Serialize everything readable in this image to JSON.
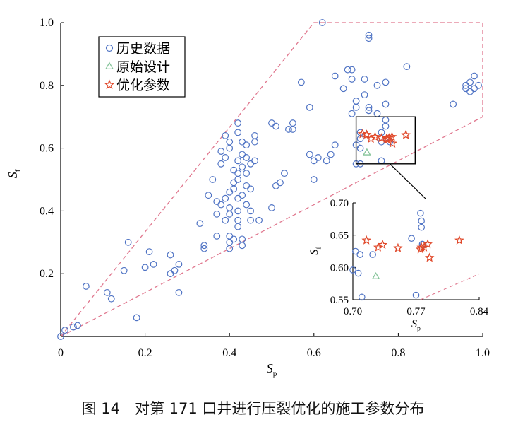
{
  "caption": "图 14　对第 171 口井进行压裂优化的施工参数分布",
  "colors": {
    "history": "#4f73c4",
    "original": "#86c49a",
    "optimized": "#e0482a",
    "boundary": "#e0778e"
  },
  "chart_data": [
    {
      "type": "scatter",
      "xlabel": "Sp",
      "ylabel": "Sf",
      "xlim": [
        0,
        1.0
      ],
      "ylim": [
        0,
        1.0
      ],
      "xticks": [
        "0",
        "0.2",
        "0.4",
        "0.6",
        "0.8",
        "1.0"
      ],
      "yticks": [
        "0.2",
        "0.4",
        "0.6",
        "0.8",
        "1.0"
      ],
      "legend": [
        "历史数据",
        "原始设计",
        "优化参数"
      ],
      "legend_position": "top-left",
      "boundary_upper": [
        [
          0,
          0
        ],
        [
          0.6,
          1.0
        ],
        [
          1.0,
          1.0
        ],
        [
          1.0,
          0.7
        ]
      ],
      "boundary_lower": [
        [
          0,
          0
        ],
        [
          1.0,
          0.7
        ]
      ],
      "series": [
        {
          "name": "历史数据",
          "marker": "circle",
          "points": [
            [
              0.0,
              0.0
            ],
            [
              0.01,
              0.02
            ],
            [
              0.03,
              0.03
            ],
            [
              0.04,
              0.035
            ],
            [
              0.06,
              0.16
            ],
            [
              0.11,
              0.14
            ],
            [
              0.12,
              0.12
            ],
            [
              0.15,
              0.21
            ],
            [
              0.16,
              0.3
            ],
            [
              0.18,
              0.06
            ],
            [
              0.2,
              0.22
            ],
            [
              0.21,
              0.27
            ],
            [
              0.22,
              0.23
            ],
            [
              0.26,
              0.2
            ],
            [
              0.26,
              0.26
            ],
            [
              0.27,
              0.21
            ],
            [
              0.28,
              0.23
            ],
            [
              0.28,
              0.14
            ],
            [
              0.33,
              0.36
            ],
            [
              0.34,
              0.28
            ],
            [
              0.34,
              0.29
            ],
            [
              0.35,
              0.45
            ],
            [
              0.36,
              0.5
            ],
            [
              0.37,
              0.43
            ],
            [
              0.37,
              0.32
            ],
            [
              0.37,
              0.39
            ],
            [
              0.38,
              0.42
            ],
            [
              0.38,
              0.55
            ],
            [
              0.38,
              0.59
            ],
            [
              0.39,
              0.64
            ],
            [
              0.39,
              0.57
            ],
            [
              0.39,
              0.44
            ],
            [
              0.39,
              0.37
            ],
            [
              0.4,
              0.28
            ],
            [
              0.4,
              0.3
            ],
            [
              0.4,
              0.62
            ],
            [
              0.4,
              0.6
            ],
            [
              0.4,
              0.46
            ],
            [
              0.4,
              0.41
            ],
            [
              0.4,
              0.39
            ],
            [
              0.4,
              0.32
            ],
            [
              0.41,
              0.53
            ],
            [
              0.41,
              0.49
            ],
            [
              0.41,
              0.47
            ],
            [
              0.41,
              0.31
            ],
            [
              0.42,
              0.65
            ],
            [
              0.42,
              0.68
            ],
            [
              0.42,
              0.56
            ],
            [
              0.42,
              0.52
            ],
            [
              0.42,
              0.5
            ],
            [
              0.42,
              0.44
            ],
            [
              0.42,
              0.4
            ],
            [
              0.42,
              0.37
            ],
            [
              0.42,
              0.35
            ],
            [
              0.43,
              0.62
            ],
            [
              0.43,
              0.58
            ],
            [
              0.43,
              0.54
            ],
            [
              0.43,
              0.45
            ],
            [
              0.43,
              0.31
            ],
            [
              0.43,
              0.29
            ],
            [
              0.44,
              0.61
            ],
            [
              0.44,
              0.57
            ],
            [
              0.44,
              0.52
            ],
            [
              0.44,
              0.48
            ],
            [
              0.44,
              0.42
            ],
            [
              0.45,
              0.55
            ],
            [
              0.45,
              0.47
            ],
            [
              0.45,
              0.4
            ],
            [
              0.45,
              0.37
            ],
            [
              0.46,
              0.64
            ],
            [
              0.46,
              0.62
            ],
            [
              0.46,
              0.56
            ],
            [
              0.47,
              0.37
            ],
            [
              0.5,
              0.68
            ],
            [
              0.5,
              0.41
            ],
            [
              0.51,
              0.67
            ],
            [
              0.51,
              0.48
            ],
            [
              0.52,
              0.49
            ],
            [
              0.53,
              0.52
            ],
            [
              0.54,
              0.66
            ],
            [
              0.55,
              0.68
            ],
            [
              0.55,
              0.66
            ],
            [
              0.57,
              0.81
            ],
            [
              0.59,
              0.73
            ],
            [
              0.59,
              0.58
            ],
            [
              0.6,
              0.56
            ],
            [
              0.6,
              0.5
            ],
            [
              0.61,
              0.57
            ],
            [
              0.62,
              1.0
            ],
            [
              0.63,
              0.56
            ],
            [
              0.64,
              0.58
            ],
            [
              0.65,
              0.83
            ],
            [
              0.65,
              0.61
            ],
            [
              0.67,
              0.79
            ],
            [
              0.68,
              0.85
            ],
            [
              0.69,
              0.85
            ],
            [
              0.69,
              0.82
            ],
            [
              0.69,
              0.71
            ],
            [
              0.7,
              0.75
            ],
            [
              0.7,
              0.73
            ],
            [
              0.7,
              0.61
            ],
            [
              0.7,
              0.55
            ],
            [
              0.71,
              0.65
            ],
            [
              0.71,
              0.63
            ],
            [
              0.71,
              0.6
            ],
            [
              0.71,
              0.55
            ],
            [
              0.72,
              0.82
            ],
            [
              0.72,
              0.77
            ],
            [
              0.73,
              0.96
            ],
            [
              0.73,
              0.95
            ],
            [
              0.73,
              0.73
            ],
            [
              0.73,
              0.72
            ],
            [
              0.75,
              0.8
            ],
            [
              0.75,
              0.71
            ],
            [
              0.76,
              0.65
            ],
            [
              0.76,
              0.62
            ],
            [
              0.76,
              0.56
            ],
            [
              0.77,
              0.81
            ],
            [
              0.77,
              0.74
            ],
            [
              0.77,
              0.69
            ],
            [
              0.77,
              0.67
            ],
            [
              0.78,
              0.62
            ],
            [
              0.82,
              0.86
            ],
            [
              0.93,
              0.74
            ],
            [
              0.96,
              0.8
            ],
            [
              0.96,
              0.79
            ],
            [
              0.97,
              0.78
            ],
            [
              0.97,
              0.81
            ],
            [
              0.98,
              0.83
            ],
            [
              0.98,
              0.79
            ],
            [
              0.99,
              0.8
            ]
          ]
        },
        {
          "name": "原始设计",
          "marker": "triangle",
          "points": [
            [
              0.7255,
              0.586
            ]
          ]
        },
        {
          "name": "优化参数",
          "marker": "star",
          "points": [
            [
              0.715,
              0.645
            ],
            [
              0.725,
              0.643
            ],
            [
              0.735,
              0.63
            ],
            [
              0.745,
              0.636
            ],
            [
              0.76,
              0.632
            ],
            [
              0.772,
              0.63
            ],
            [
              0.775,
              0.627
            ],
            [
              0.778,
              0.632
            ],
            [
              0.785,
              0.636
            ],
            [
              0.786,
              0.615
            ],
            [
              0.818,
              0.642
            ]
          ]
        }
      ]
    },
    {
      "type": "scatter",
      "role": "inset",
      "xlim": [
        0.7,
        0.84
      ],
      "ylim": [
        0.55,
        0.7
      ],
      "xticks": [
        "0.70",
        "0.77",
        "0.84"
      ],
      "yticks": [
        "0.55",
        "0.60",
        "0.65",
        "0.70"
      ],
      "xlabel": "Sp",
      "ylabel": "Sf",
      "series": [
        {
          "name": "历史数据",
          "marker": "circle",
          "points": [
            [
              0.7,
              0.596
            ],
            [
              0.703,
              0.625
            ],
            [
              0.706,
              0.591
            ],
            [
              0.708,
              0.62
            ],
            [
              0.71,
              0.554
            ],
            [
              0.722,
              0.62
            ],
            [
              0.765,
              0.645
            ],
            [
              0.77,
              0.557
            ],
            [
              0.775,
              0.684
            ],
            [
              0.776,
              0.672
            ],
            [
              0.776,
              0.662
            ],
            [
              0.777,
              0.636
            ],
            [
              0.778,
              0.635
            ]
          ]
        },
        {
          "name": "原始设计",
          "marker": "triangle",
          "points": [
            [
              0.7255,
              0.586
            ]
          ]
        },
        {
          "name": "优化参数",
          "marker": "star",
          "points": [
            [
              0.715,
              0.642
            ],
            [
              0.728,
              0.631
            ],
            [
              0.733,
              0.635
            ],
            [
              0.75,
              0.63
            ],
            [
              0.775,
              0.628
            ],
            [
              0.776,
              0.631
            ],
            [
              0.779,
              0.631
            ],
            [
              0.783,
              0.636
            ],
            [
              0.785,
              0.615
            ],
            [
              0.818,
              0.642
            ]
          ]
        }
      ],
      "boundary_lower": [
        [
          0.775,
          0.55
        ],
        [
          0.84,
          0.59
        ]
      ]
    }
  ]
}
